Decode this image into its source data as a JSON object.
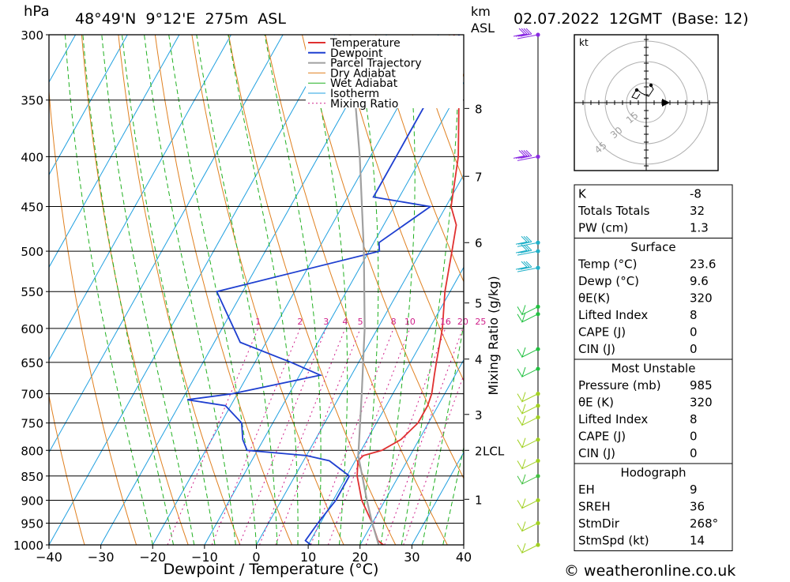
{
  "header": {
    "pressure_unit": "hPa",
    "location": "48°49'N  9°12'E  275m  ASL",
    "height_unit": "km",
    "height_unit_ref": "ASL",
    "datetime": "02.07.2022  12GMT  (Base: 12)"
  },
  "footer": {
    "copyright": "© weatheronline.co.uk"
  },
  "colors": {
    "temperature": "#e03030",
    "dewpoint": "#1e3fd0",
    "parcel": "#a0a0a0",
    "dry_adiabat": "#e08020",
    "wet_adiabat": "#20b020",
    "isotherm": "#20a0e0",
    "mixing_ratio": "#d0208a"
  },
  "chart_data": {
    "type": "line",
    "title": "",
    "xlabel": "Dewpoint / Temperature (°C)",
    "ylabel": "hPa",
    "xlim": [
      -40,
      40
    ],
    "ylim": [
      1000,
      300
    ],
    "x_ticks": [
      -40,
      -30,
      -20,
      -10,
      0,
      10,
      20,
      30,
      40
    ],
    "pressure_levels": [
      300,
      350,
      400,
      450,
      500,
      550,
      600,
      650,
      700,
      750,
      800,
      850,
      900,
      950,
      1000
    ],
    "height_axis": {
      "label": "km ASL",
      "ticks": [
        "8",
        "7",
        "6",
        "5",
        "4",
        "3",
        "2",
        "1"
      ],
      "lcl_label": "LCL"
    },
    "mixing_ratio_axis": {
      "label": "Mixing Ratio (g/kg)",
      "values": [
        "1",
        "2",
        "3",
        "4",
        "5",
        "8",
        "10",
        "16",
        "20",
        "25"
      ]
    },
    "legend": {
      "position": "top-right",
      "entries": [
        "Temperature",
        "Dewpoint",
        "Parcel Trajectory",
        "Dry Adiabat",
        "Wet Adiabat",
        "Isotherm",
        "Mixing Ratio"
      ]
    },
    "series": [
      {
        "name": "Temperature",
        "points": [
          [
            1000,
            24.5
          ],
          [
            990,
            23
          ],
          [
            950,
            20
          ],
          [
            900,
            15.5
          ],
          [
            850,
            12
          ],
          [
            820,
            10.5
          ],
          [
            810,
            11
          ],
          [
            800,
            14
          ],
          [
            780,
            16.5
          ],
          [
            750,
            18
          ],
          [
            720,
            18
          ],
          [
            700,
            17.5
          ],
          [
            680,
            16.5
          ],
          [
            670,
            16
          ],
          [
            650,
            15
          ],
          [
            600,
            12.5
          ],
          [
            550,
            9
          ],
          [
            500,
            6
          ],
          [
            470,
            4
          ],
          [
            450,
            1
          ],
          [
            400,
            -3
          ],
          [
            350,
            -9
          ],
          [
            320,
            -14
          ],
          [
            300,
            -17
          ]
        ]
      },
      {
        "name": "Dewpoint",
        "points": [
          [
            1000,
            10.5
          ],
          [
            990,
            9
          ],
          [
            950,
            9.5
          ],
          [
            900,
            10.5
          ],
          [
            850,
            10.5
          ],
          [
            820,
            5
          ],
          [
            810,
            0
          ],
          [
            800,
            -12
          ],
          [
            780,
            -14
          ],
          [
            750,
            -16
          ],
          [
            720,
            -21
          ],
          [
            710,
            -29
          ],
          [
            700,
            -21
          ],
          [
            670,
            -6
          ],
          [
            650,
            -13
          ],
          [
            620,
            -25
          ],
          [
            550,
            -35
          ],
          [
            500,
            -8
          ],
          [
            490,
            -9
          ],
          [
            450,
            -3
          ],
          [
            440,
            -15
          ],
          [
            400,
            -15
          ],
          [
            350,
            -15
          ],
          [
            320,
            -16
          ],
          [
            300,
            -16
          ]
        ]
      },
      {
        "name": "Parcel Trajectory",
        "points": [
          [
            1000,
            23.6
          ],
          [
            950,
            20
          ],
          [
            900,
            16.5
          ],
          [
            850,
            13
          ],
          [
            810,
            10
          ],
          [
            800,
            9.5
          ],
          [
            700,
            4
          ],
          [
            600,
            -2.5
          ],
          [
            500,
            -11
          ],
          [
            400,
            -22
          ],
          [
            350,
            -29
          ],
          [
            300,
            -37
          ]
        ]
      }
    ]
  },
  "hodograph": {
    "unit": "kt",
    "ring_labels": [
      "15",
      "30",
      "45"
    ]
  },
  "indices": {
    "general": [
      {
        "label": "K",
        "value": "-8"
      },
      {
        "label": "Totals Totals",
        "value": "32"
      },
      {
        "label": "PW (cm)",
        "value": "1.3"
      }
    ],
    "surface": {
      "title": "Surface",
      "rows": [
        {
          "label": "Temp (°C)",
          "value": "23.6"
        },
        {
          "label": "Dewp (°C)",
          "value": "9.6"
        },
        {
          "label": "θE(K)",
          "value": "320"
        },
        {
          "label": "Lifted Index",
          "value": "8"
        },
        {
          "label": "CAPE (J)",
          "value": "0"
        },
        {
          "label": "CIN (J)",
          "value": "0"
        }
      ]
    },
    "most_unstable": {
      "title": "Most Unstable",
      "rows": [
        {
          "label": "Pressure (mb)",
          "value": "985"
        },
        {
          "label": "θE (K)",
          "value": "320"
        },
        {
          "label": "Lifted Index",
          "value": "8"
        },
        {
          "label": "CAPE (J)",
          "value": "0"
        },
        {
          "label": "CIN (J)",
          "value": "0"
        }
      ]
    },
    "hodograph": {
      "title": "Hodograph",
      "rows": [
        {
          "label": "EH",
          "value": "9"
        },
        {
          "label": "SREH",
          "value": "36"
        },
        {
          "label": "StmDir",
          "value": "268°"
        },
        {
          "label": "StmSpd (kt)",
          "value": "14"
        }
      ]
    }
  }
}
